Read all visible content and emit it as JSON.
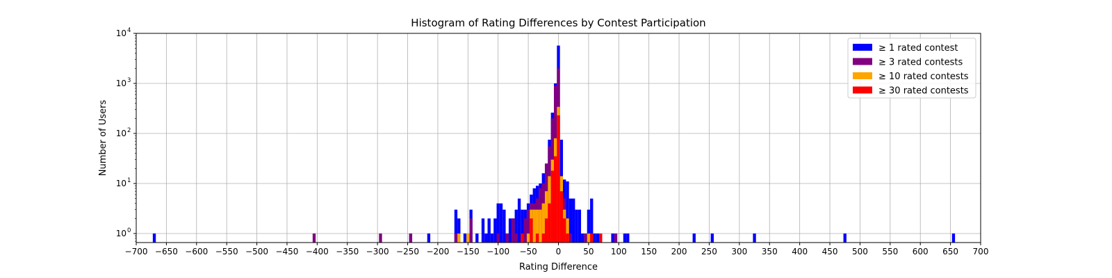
{
  "chart_data": {
    "type": "bar",
    "title": "Histogram of Rating Differences by Contest Participation",
    "xlabel": "Rating Difference",
    "ylabel": "Number of Users",
    "xlim": [
      -700,
      700
    ],
    "x_ticks": [
      -700,
      -650,
      -600,
      -550,
      -500,
      -450,
      -400,
      -350,
      -300,
      -250,
      -200,
      -150,
      -100,
      -50,
      0,
      50,
      100,
      150,
      200,
      250,
      300,
      350,
      400,
      450,
      500,
      550,
      600,
      650,
      700
    ],
    "y_scale": "log",
    "ylim": [
      0.66,
      10000
    ],
    "y_ticks": [
      {
        "value": 1,
        "label": "10",
        "exp": "0"
      },
      {
        "value": 10,
        "label": "10",
        "exp": "1"
      },
      {
        "value": 100,
        "label": "10",
        "exp": "2"
      },
      {
        "value": 1000,
        "label": "10",
        "exp": "3"
      },
      {
        "value": 10000,
        "label": "10",
        "exp": "4"
      }
    ],
    "grid": true,
    "bin_width": 5,
    "legend_position": "upper-right",
    "colors": {
      "s1": "#0000ff",
      "s3": "#800080",
      "s10": "#ffa500",
      "s30": "#ff0000"
    },
    "series": [
      {
        "name": "≥ 1 rated contest",
        "color_key": "s1",
        "bins": [
          [
            -670,
            1
          ],
          [
            -245,
            1
          ],
          [
            -215,
            1
          ],
          [
            -170,
            3
          ],
          [
            -165,
            2
          ],
          [
            -155,
            1
          ],
          [
            -145,
            3
          ],
          [
            -135,
            1
          ],
          [
            -125,
            2
          ],
          [
            -120,
            1
          ],
          [
            -115,
            2
          ],
          [
            -110,
            1
          ],
          [
            -105,
            2
          ],
          [
            -100,
            4
          ],
          [
            -95,
            4
          ],
          [
            -90,
            3
          ],
          [
            -85,
            1
          ],
          [
            -80,
            2
          ],
          [
            -75,
            2
          ],
          [
            -70,
            3
          ],
          [
            -65,
            5
          ],
          [
            -60,
            3
          ],
          [
            -55,
            3
          ],
          [
            -50,
            4
          ],
          [
            -45,
            6
          ],
          [
            -40,
            8
          ],
          [
            -35,
            9
          ],
          [
            -30,
            10
          ],
          [
            -25,
            16
          ],
          [
            -20,
            25
          ],
          [
            -15,
            75
          ],
          [
            -10,
            260
          ],
          [
            -5,
            1000
          ],
          [
            0,
            5700
          ],
          [
            5,
            75
          ],
          [
            10,
            12
          ],
          [
            15,
            11
          ],
          [
            20,
            5
          ],
          [
            25,
            5
          ],
          [
            30,
            3
          ],
          [
            35,
            3
          ],
          [
            40,
            1
          ],
          [
            45,
            1
          ],
          [
            50,
            3
          ],
          [
            55,
            5
          ],
          [
            60,
            1
          ],
          [
            65,
            1
          ],
          [
            90,
            1
          ],
          [
            95,
            1
          ],
          [
            110,
            1
          ],
          [
            115,
            1
          ],
          [
            225,
            1
          ],
          [
            255,
            1
          ],
          [
            325,
            1
          ],
          [
            475,
            1
          ],
          [
            655,
            1
          ]
        ]
      },
      {
        "name": "≥ 3 rated contests",
        "color_key": "s3",
        "bins": [
          [
            -405,
            1
          ],
          [
            -295,
            1
          ],
          [
            -245,
            1
          ],
          [
            -170,
            1
          ],
          [
            -145,
            2
          ],
          [
            -100,
            1
          ],
          [
            -85,
            1
          ],
          [
            -75,
            2
          ],
          [
            -70,
            1
          ],
          [
            -60,
            1
          ],
          [
            -55,
            2
          ],
          [
            -50,
            3
          ],
          [
            -45,
            4
          ],
          [
            -40,
            4
          ],
          [
            -35,
            5
          ],
          [
            -30,
            8
          ],
          [
            -25,
            10
          ],
          [
            -20,
            25
          ],
          [
            -15,
            55
          ],
          [
            -10,
            200
          ],
          [
            -5,
            900
          ],
          [
            0,
            2000
          ],
          [
            5,
            7
          ],
          [
            10,
            5
          ],
          [
            15,
            2
          ],
          [
            20,
            1
          ],
          [
            45,
            1
          ],
          [
            50,
            1
          ],
          [
            70,
            1
          ],
          [
            95,
            1
          ]
        ]
      },
      {
        "name": "≥ 10 rated contests",
        "color_key": "s10",
        "bins": [
          [
            -165,
            1
          ],
          [
            -150,
            1
          ],
          [
            -50,
            1
          ],
          [
            -45,
            3
          ],
          [
            -40,
            3
          ],
          [
            -35,
            3
          ],
          [
            -30,
            3
          ],
          [
            -25,
            4
          ],
          [
            -20,
            7
          ],
          [
            -15,
            14
          ],
          [
            -10,
            30
          ],
          [
            -5,
            80
          ],
          [
            0,
            340
          ],
          [
            5,
            14
          ],
          [
            10,
            3
          ],
          [
            15,
            2
          ],
          [
            50,
            1
          ]
        ]
      },
      {
        "name": "≥ 30 rated contests",
        "color_key": "s30",
        "bins": [
          [
            -60,
            1
          ],
          [
            -45,
            2
          ],
          [
            -35,
            1
          ],
          [
            -25,
            1
          ],
          [
            -20,
            2
          ],
          [
            -15,
            4
          ],
          [
            -10,
            18
          ],
          [
            -5,
            35
          ],
          [
            0,
            230
          ],
          [
            5,
            7
          ],
          [
            10,
            2
          ],
          [
            15,
            1
          ],
          [
            55,
            1
          ],
          [
            70,
            1
          ]
        ]
      }
    ]
  }
}
